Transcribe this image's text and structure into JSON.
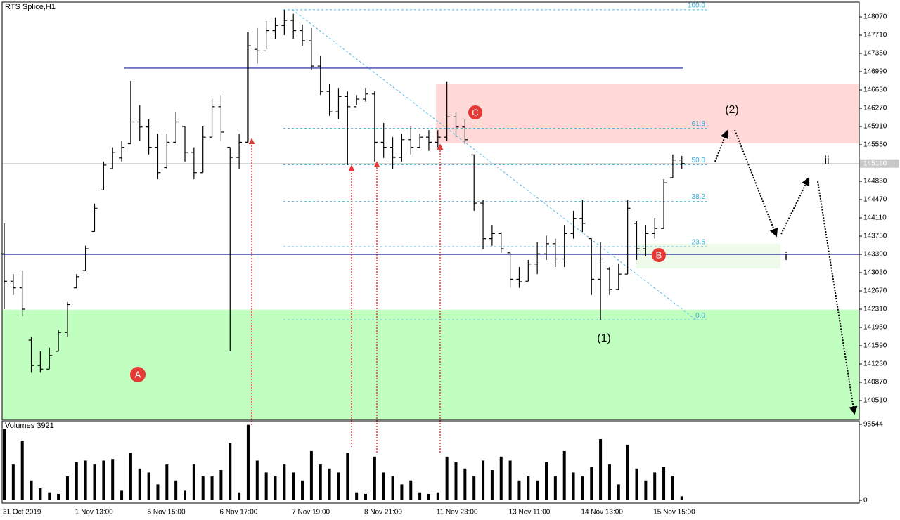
{
  "chart_data": [
    {
      "type": "ohlc",
      "title": "RTS Splice,H1",
      "categories": [
        "31 Oct 2019",
        null,
        null,
        null,
        null,
        null,
        null,
        null,
        "1 Nov 13:00",
        null,
        null,
        null,
        null,
        null,
        null,
        null,
        "5 Nov 15:00",
        null,
        null,
        null,
        null,
        null,
        null,
        null,
        "6 Nov 17:00",
        null,
        null,
        null,
        null,
        null,
        null,
        null,
        "7 Nov 19:00",
        null,
        null,
        null,
        null,
        null,
        null,
        null,
        "8 Nov 21:00",
        null,
        null,
        null,
        null,
        null,
        null,
        null,
        "11 Nov 23:00",
        null,
        null,
        null,
        null,
        null,
        null,
        null,
        "13 Nov 11:00",
        null,
        null,
        null,
        null,
        null,
        null,
        null,
        "14 Nov 13:00",
        null,
        null,
        null,
        null,
        null,
        null,
        null,
        "15 Nov 15:00",
        null,
        null,
        null
      ],
      "open": [
        143400,
        142860,
        142730,
        141700,
        141200,
        141130,
        141480,
        141850,
        142730,
        143070,
        143840,
        144660,
        145080,
        145290,
        145570,
        146000,
        145900,
        145500,
        145100,
        145600,
        145910,
        145400,
        145000,
        145700,
        146300,
        145500,
        145300,
        145600,
        147430,
        147400,
        147800,
        147900,
        148000,
        147800,
        147600,
        147100,
        146600,
        146200,
        146500,
        146300,
        146450,
        146550,
        145600,
        145500,
        145300,
        145650,
        145500,
        145700,
        145600,
        145700,
        146100,
        145900,
        145350,
        144400,
        143700,
        143800,
        143420,
        142900,
        142860,
        143200,
        143400,
        143600,
        143300,
        143800,
        144100,
        143700,
        142900,
        143100,
        142700,
        143000,
        144000,
        143500,
        143800,
        143900,
        144900,
        145250
      ],
      "high": [
        144000,
        143000,
        143070,
        141760,
        141480,
        141550,
        141900,
        142450,
        143000,
        143560,
        144390,
        145220,
        145500,
        145630,
        146810,
        146330,
        146050,
        145770,
        145770,
        146190,
        145910,
        145500,
        145910,
        146460,
        146530,
        145500,
        145770,
        147780,
        147850,
        147990,
        148060,
        148210,
        148130,
        147920,
        147850,
        147300,
        146740,
        146670,
        146600,
        146530,
        146670,
        146600,
        145980,
        145700,
        145770,
        145910,
        145770,
        145840,
        145840,
        146800,
        146190,
        146050,
        145360,
        144460,
        143970,
        143830,
        143420,
        143140,
        143280,
        143630,
        143760,
        143700,
        143970,
        144250,
        144460,
        143700,
        143630,
        143140,
        143210,
        144460,
        144040,
        143970,
        144110,
        144870,
        145360,
        145330
      ],
      "low": [
        142310,
        142590,
        142170,
        141060,
        141060,
        141130,
        141480,
        141760,
        142730,
        143070,
        143840,
        144660,
        145080,
        145220,
        145570,
        145630,
        145360,
        144870,
        145080,
        145600,
        145220,
        144870,
        145000,
        145700,
        145630,
        141480,
        145080,
        145600,
        147150,
        147430,
        147640,
        147710,
        147640,
        147500,
        147020,
        146530,
        146120,
        146050,
        145150,
        146330,
        146400,
        145220,
        145290,
        145080,
        145220,
        145360,
        145500,
        145430,
        145500,
        145630,
        145700,
        145560,
        144250,
        143490,
        143560,
        143420,
        142730,
        142730,
        142860,
        143000,
        143280,
        143140,
        143140,
        143700,
        143830,
        142590,
        142100,
        142590,
        142700,
        143000,
        143280,
        143350,
        143700,
        143900,
        144900,
        145080
      ],
      "close": [
        142860,
        142730,
        142310,
        141200,
        141130,
        141400,
        141850,
        142400,
        142950,
        143500,
        144300,
        145150,
        145400,
        145500,
        146000,
        145900,
        145500,
        145000,
        145600,
        146000,
        145400,
        145000,
        145700,
        146300,
        145800,
        145300,
        145600,
        147500,
        147400,
        147800,
        147900,
        148000,
        147800,
        147600,
        147100,
        146600,
        146200,
        146500,
        146300,
        146450,
        146550,
        145600,
        145500,
        145300,
        145650,
        145500,
        145700,
        145600,
        145700,
        146100,
        145900,
        145650,
        144400,
        143700,
        143800,
        143500,
        142900,
        142850,
        143200,
        143400,
        143600,
        143300,
        143800,
        144100,
        144000,
        142900,
        143300,
        142700,
        143000,
        144300,
        143500,
        143800,
        143900,
        144800,
        145250,
        145180
      ],
      "color": "#000000",
      "ylim": [
        140136,
        148361
      ],
      "yticks": [
        148070,
        147710,
        147350,
        146990,
        146630,
        146270,
        145910,
        145550,
        144830,
        144470,
        144110,
        143750,
        143390,
        143030,
        142670,
        142310,
        141950,
        141590,
        141230,
        140870,
        140510
      ],
      "current_price": 145180,
      "hlines": [
        147060,
        143390
      ],
      "zones": [
        {
          "from": 140136,
          "to": 142300,
          "color": "#c0ffc0"
        },
        {
          "from": 145580,
          "to": 146740,
          "color": "#ffd8d8"
        },
        {
          "from": 143110,
          "to": 143600,
          "color": "#eefbea"
        }
      ],
      "fib": {
        "high": 148210,
        "low": 142100,
        "levels": [
          {
            "value": 100,
            "label": "100.0"
          },
          {
            "value": 61.8,
            "label": "61.8"
          },
          {
            "value": 50,
            "label": "50.0"
          },
          {
            "value": 38.2,
            "label": "38.2"
          },
          {
            "value": 23.6,
            "label": "23.6"
          },
          {
            "value": 0,
            "label": "0.0"
          }
        ]
      },
      "annotations": [
        "A",
        "B",
        "C",
        "(1)",
        "(2)",
        "i",
        "ii"
      ]
    },
    {
      "type": "bar",
      "title": "Volumes 3921",
      "values": [
        90000,
        45000,
        75000,
        25000,
        15000,
        10000,
        8000,
        30000,
        48000,
        50000,
        45000,
        50000,
        52000,
        12000,
        60000,
        40000,
        35000,
        20000,
        45000,
        25000,
        12000,
        45000,
        30000,
        30000,
        38000,
        72000,
        10000,
        95000,
        50000,
        35000,
        30000,
        45000,
        35000,
        25000,
        62000,
        45000,
        40000,
        35000,
        60000,
        10000,
        8000,
        55000,
        35000,
        30000,
        20000,
        25000,
        10000,
        8000,
        10000,
        55000,
        48000,
        40000,
        30000,
        50000,
        38000,
        55000,
        50000,
        25000,
        30000,
        25000,
        48000,
        30000,
        62000,
        35000,
        30000,
        42000,
        77000,
        45000,
        20000,
        70000,
        40000,
        25000,
        35000,
        42000,
        30000,
        5000
      ],
      "color": "#000000",
      "ylim": [
        0,
        95544
      ],
      "yticks": [
        0,
        95544
      ]
    }
  ]
}
